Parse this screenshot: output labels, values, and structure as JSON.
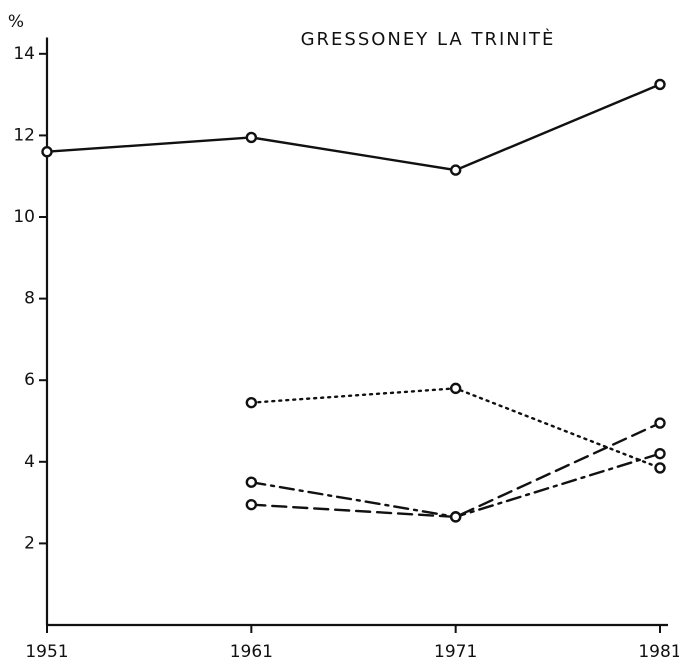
{
  "chart_data": {
    "type": "line",
    "title": "GRESSONEY LA TRINITÈ",
    "y_label": "%",
    "x": [
      1951,
      1961,
      1971,
      1981
    ],
    "xlim": [
      1951,
      1981
    ],
    "xticks": [
      1951,
      1961,
      1971,
      1981
    ],
    "ylim": [
      0,
      14.4
    ],
    "yticks": [
      2,
      4,
      6,
      8,
      10,
      12,
      14
    ],
    "series": [
      {
        "color": "#111111",
        "line_style": "solid",
        "values": [
          11.6,
          11.95,
          11.15,
          13.25
        ]
      },
      {
        "color": "#111111",
        "line_style": "dotted",
        "values": [
          null,
          5.45,
          5.8,
          3.85
        ]
      },
      {
        "color": "#111111",
        "line_style": "dashdot",
        "values": [
          null,
          3.5,
          2.65,
          4.2
        ]
      },
      {
        "color": "#111111",
        "line_style": "dashed",
        "values": [
          null,
          2.95,
          2.65,
          4.95
        ]
      }
    ]
  }
}
